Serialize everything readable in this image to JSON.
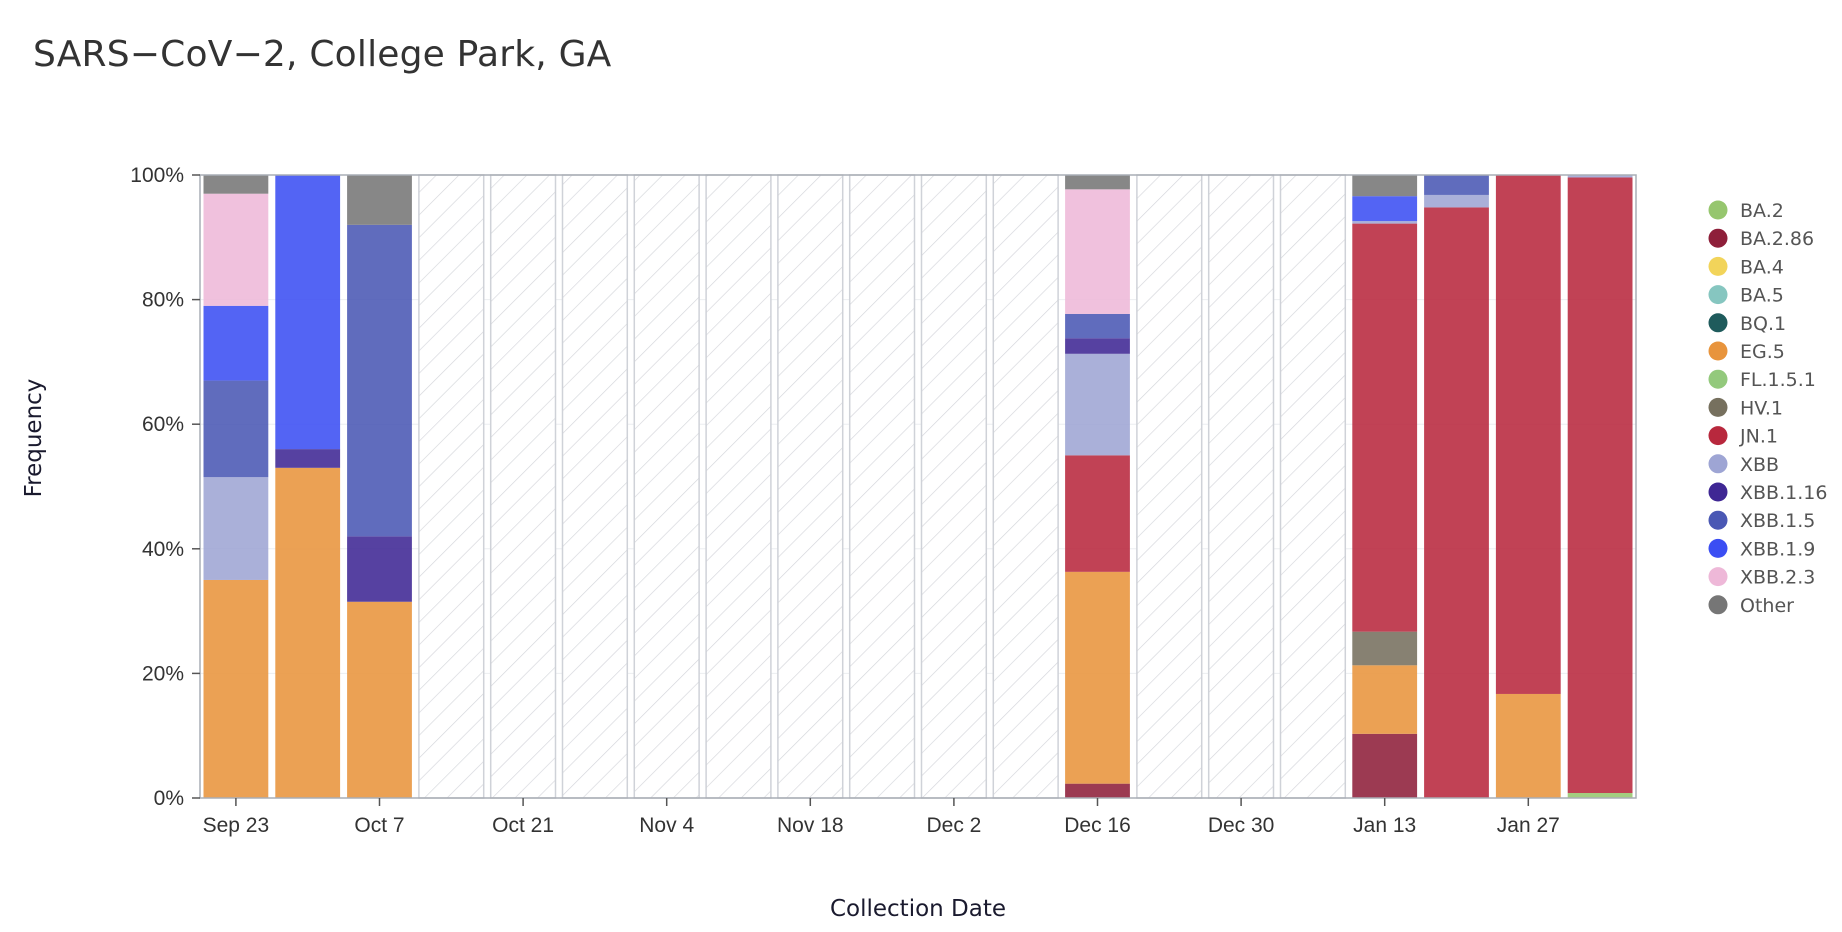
{
  "page": {
    "title": "SARS−CoV−2, College Park, GA"
  },
  "colors": {
    "BA.2": "#96c66e",
    "BA.2.86": "#8e1f3a",
    "BA.4": "#f2d45a",
    "BA.5": "#86c6c0",
    "BQ.1": "#1f5b5c",
    "EG.5": "#e8943c",
    "FL.1.5.1": "#93c97c",
    "HV.1": "#76705e",
    "JN.1": "#b8283d",
    "XBB": "#9ea5d4",
    "XBB.1.16": "#3f2794",
    "XBB.1.5": "#4a58b4",
    "XBB.1.9": "#3b4ef3",
    "XBB.2.3": "#eeb8d8",
    "Other": "#767676",
    "no_data_hatch": "#cfd2d8",
    "gridline": "#d6d8dd"
  },
  "chart_data": {
    "type": "bar",
    "stacked": true,
    "title": "SARS−CoV−2, College Park, GA",
    "xlabel": "Collection Date",
    "ylabel": "Frequency",
    "ylim": [
      0,
      1
    ],
    "y_ticks": [
      "0%",
      "20%",
      "40%",
      "60%",
      "80%",
      "100%"
    ],
    "x_ticks": [
      "Sep 23",
      "Oct 7",
      "Oct 21",
      "Nov 4",
      "Nov 18",
      "Dec 2",
      "Dec 16",
      "Dec 30",
      "Jan 13",
      "Jan 27"
    ],
    "legend_position": "right",
    "series_order": [
      "BA.2",
      "BA.2.86",
      "BA.4",
      "BA.5",
      "BQ.1",
      "EG.5",
      "FL.1.5.1",
      "HV.1",
      "JN.1",
      "XBB",
      "XBB.1.16",
      "XBB.1.5",
      "XBB.1.9",
      "XBB.2.3",
      "Other"
    ],
    "stack_order": [
      "BA.2",
      "BA.2.86",
      "EG.5",
      "HV.1",
      "JN.1",
      "XBB",
      "XBB.1.16",
      "XBB.1.5",
      "XBB.1.9",
      "XBB.2.3",
      "Other"
    ],
    "bars": [
      {
        "week": "Sep 23",
        "values": {
          "EG.5": 0.35,
          "XBB": 0.165,
          "XBB.1.5": 0.155,
          "XBB.1.9": 0.12,
          "XBB.2.3": 0.18,
          "Other": 0.03
        }
      },
      {
        "week": "Sep 30",
        "values": {
          "EG.5": 0.53,
          "XBB.1.16": 0.03,
          "XBB.1.9": 0.44
        }
      },
      {
        "week": "Oct 7",
        "values": {
          "EG.5": 0.315,
          "XBB.1.16": 0.105,
          "XBB.1.5": 0.5,
          "Other": 0.08
        }
      },
      {
        "week": "Oct 14",
        "values": null
      },
      {
        "week": "Oct 21",
        "values": null
      },
      {
        "week": "Oct 28",
        "values": null
      },
      {
        "week": "Nov 4",
        "values": null
      },
      {
        "week": "Nov 11",
        "values": null
      },
      {
        "week": "Nov 18",
        "values": null
      },
      {
        "week": "Nov 25",
        "values": null
      },
      {
        "week": "Dec 2",
        "values": null
      },
      {
        "week": "Dec 9",
        "values": null
      },
      {
        "week": "Dec 16",
        "values": {
          "BA.2.86": 0.023,
          "EG.5": 0.34,
          "JN.1": 0.187,
          "XBB": 0.163,
          "XBB.1.16": 0.025,
          "XBB.1.5": 0.039,
          "XBB.2.3": 0.2,
          "Other": 0.023
        }
      },
      {
        "week": "Dec 23",
        "values": null
      },
      {
        "week": "Dec 30",
        "values": null
      },
      {
        "week": "Jan 6",
        "values": null
      },
      {
        "week": "Jan 13",
        "values": {
          "BA.2.86": 0.103,
          "EG.5": 0.11,
          "HV.1": 0.054,
          "JN.1": 0.655,
          "XBB": 0.004,
          "XBB.1.9": 0.04,
          "Other": 0.034
        }
      },
      {
        "week": "Jan 20",
        "values": {
          "JN.1": 0.948,
          "XBB": 0.02,
          "XBB.1.5": 0.032
        }
      },
      {
        "week": "Jan 27",
        "values": {
          "EG.5": 0.167,
          "JN.1": 0.833
        }
      },
      {
        "week": "Feb 3",
        "values": {
          "BA.2": 0.008,
          "JN.1": 0.988,
          "XBB": 0.004
        }
      }
    ]
  }
}
